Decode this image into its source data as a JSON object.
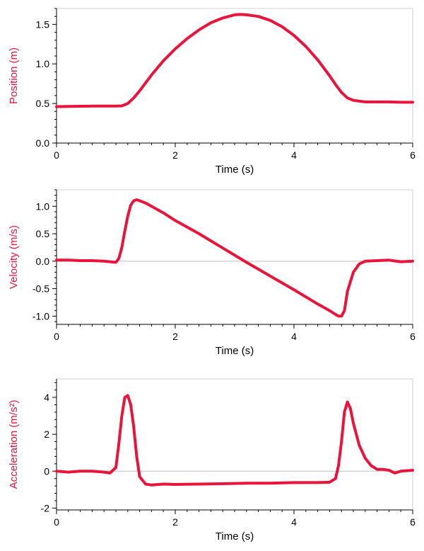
{
  "chart_data": [
    {
      "type": "line",
      "xlabel": "Time (s)",
      "ylabel": "Position (m)",
      "xlim": [
        0,
        6
      ],
      "ylim": [
        0,
        1.7
      ],
      "xticks": [
        "0",
        "2",
        "4",
        "6"
      ],
      "yticks": [
        "0.0",
        "0.5",
        "1.0",
        "1.5"
      ],
      "grid": false,
      "color": "#e8143c",
      "series": [
        {
          "x": [
            0,
            0.2,
            0.4,
            0.6,
            0.8,
            1.0,
            1.1,
            1.2,
            1.3,
            1.4,
            1.5,
            1.6,
            1.8,
            2.0,
            2.2,
            2.4,
            2.6,
            2.8,
            3.0,
            3.1,
            3.2,
            3.4,
            3.6,
            3.8,
            4.0,
            4.2,
            4.4,
            4.6,
            4.7,
            4.8,
            4.9,
            5.0,
            5.1,
            5.2,
            5.4,
            5.6,
            5.8,
            6.0
          ],
          "y": [
            0.46,
            0.463,
            0.465,
            0.467,
            0.468,
            0.468,
            0.47,
            0.5,
            0.57,
            0.66,
            0.76,
            0.86,
            1.04,
            1.19,
            1.32,
            1.43,
            1.52,
            1.58,
            1.62,
            1.625,
            1.62,
            1.6,
            1.55,
            1.47,
            1.36,
            1.22,
            1.05,
            0.85,
            0.74,
            0.64,
            0.57,
            0.54,
            0.53,
            0.52,
            0.52,
            0.52,
            0.515,
            0.515
          ]
        }
      ]
    },
    {
      "type": "line",
      "xlabel": "Time (s)",
      "ylabel": "Velocity (m/s)",
      "xlim": [
        0,
        6
      ],
      "ylim": [
        -1.15,
        1.3
      ],
      "xticks": [
        "0",
        "2",
        "4",
        "6"
      ],
      "yticks": [
        "-1.0",
        "-0.5",
        "0.0",
        "0.5",
        "1.0"
      ],
      "grid": false,
      "color": "#e8143c",
      "series": [
        {
          "x": [
            0,
            0.2,
            0.4,
            0.6,
            0.8,
            0.9,
            1.0,
            1.05,
            1.1,
            1.15,
            1.2,
            1.25,
            1.3,
            1.35,
            1.4,
            1.5,
            1.6,
            1.8,
            2.0,
            2.4,
            2.8,
            3.2,
            3.6,
            4.0,
            4.4,
            4.6,
            4.7,
            4.75,
            4.8,
            4.85,
            4.9,
            5.0,
            5.1,
            5.2,
            5.4,
            5.6,
            5.8,
            6.0
          ],
          "y": [
            0.02,
            0.02,
            0.01,
            0.01,
            0.0,
            -0.01,
            -0.02,
            0.05,
            0.25,
            0.55,
            0.82,
            1.02,
            1.1,
            1.12,
            1.1,
            1.06,
            1.0,
            0.88,
            0.74,
            0.5,
            0.24,
            -0.02,
            -0.27,
            -0.52,
            -0.78,
            -0.9,
            -0.97,
            -1.0,
            -1.0,
            -0.9,
            -0.55,
            -0.2,
            -0.05,
            0.0,
            0.01,
            0.02,
            -0.01,
            0.0
          ]
        }
      ]
    },
    {
      "type": "line",
      "xlabel": "Time (s)",
      "ylabel": "Acceleration (m/s²)",
      "xlim": [
        0,
        6
      ],
      "ylim": [
        -2.1,
        5
      ],
      "xticks": [
        "0",
        "2",
        "4",
        "6"
      ],
      "yticks": [
        "-2",
        "0",
        "2",
        "4"
      ],
      "grid": false,
      "color": "#e8143c",
      "series": [
        {
          "x": [
            0,
            0.2,
            0.4,
            0.6,
            0.8,
            0.9,
            1.0,
            1.05,
            1.1,
            1.15,
            1.2,
            1.25,
            1.3,
            1.35,
            1.4,
            1.5,
            1.6,
            1.8,
            2.0,
            2.4,
            2.8,
            3.2,
            3.6,
            4.0,
            4.4,
            4.6,
            4.7,
            4.75,
            4.8,
            4.85,
            4.9,
            4.95,
            5.0,
            5.1,
            5.2,
            5.3,
            5.4,
            5.5,
            5.6,
            5.7,
            5.8,
            6.0
          ],
          "y": [
            0.0,
            -0.05,
            0.0,
            0.0,
            -0.05,
            -0.1,
            0.2,
            1.5,
            3.0,
            4.0,
            4.1,
            3.6,
            2.4,
            0.8,
            -0.3,
            -0.7,
            -0.75,
            -0.7,
            -0.72,
            -0.7,
            -0.68,
            -0.65,
            -0.65,
            -0.62,
            -0.62,
            -0.6,
            -0.4,
            0.3,
            1.6,
            3.2,
            3.75,
            3.4,
            2.6,
            1.4,
            0.7,
            0.3,
            0.1,
            0.1,
            0.05,
            -0.1,
            0.0,
            0.05
          ]
        }
      ]
    }
  ]
}
